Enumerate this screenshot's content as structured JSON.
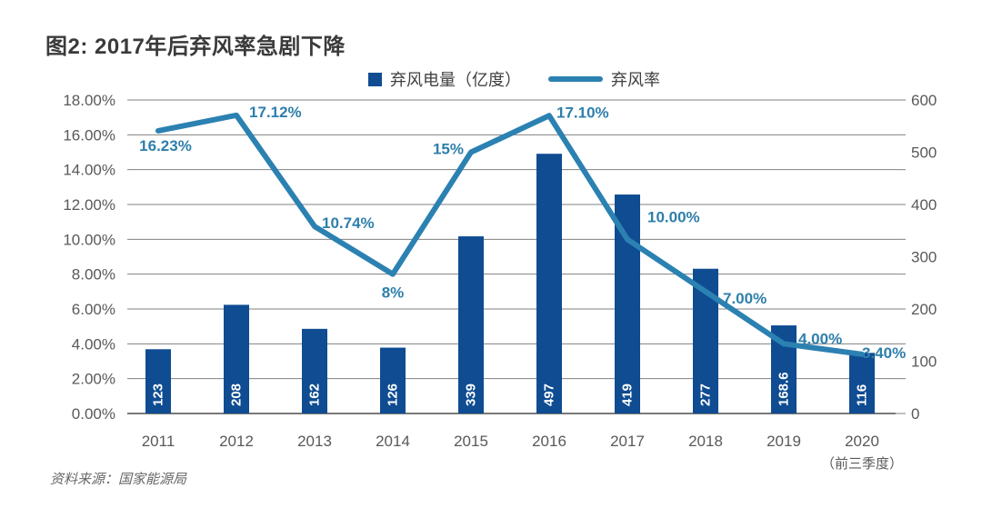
{
  "title": "图2: 2017年后弃风率急剧下降",
  "source_note": "资料来源：国家能源局",
  "legend": {
    "bar_label": "弃风电量（亿度）",
    "line_label": "弃风率"
  },
  "colors": {
    "bar": "#0f4c92",
    "line": "#2b81b1",
    "line_label": "#2e7fab",
    "bar_label": "#ffffff",
    "grid": "#808080",
    "axis_line": "#4d4d4d",
    "axis_text": "#595959",
    "title_text": "#3a3a3a",
    "legend_text": "#404040",
    "source_text": "#666666"
  },
  "chart_data": {
    "type": "combo-bar-line",
    "title": "图2: 2017年后弃风率急剧下降",
    "categories": [
      "2011",
      "2012",
      "2013",
      "2014",
      "2015",
      "2016",
      "2017",
      "2018",
      "2019",
      "2020"
    ],
    "category_note": {
      "index": 9,
      "text": "（前三季度）"
    },
    "series": [
      {
        "name": "弃风电量（亿度）",
        "type": "bar",
        "axis": "right",
        "values": [
          123,
          208,
          162,
          126,
          339,
          497,
          419,
          277,
          168.6,
          116
        ],
        "data_labels": [
          "123",
          "208",
          "162",
          "126",
          "339",
          "497",
          "419",
          "277",
          "168.6",
          "116"
        ]
      },
      {
        "name": "弃风率",
        "type": "line",
        "axis": "left",
        "values": [
          16.23,
          17.12,
          10.74,
          8,
          15,
          17.1,
          10.0,
          7.0,
          4.0,
          3.4
        ],
        "data_labels": [
          "16.23%",
          "17.12%",
          "10.74%",
          "8%",
          "15%",
          "17.10%",
          "10.00%",
          "7.00%",
          "4.00%",
          "3.40%"
        ]
      }
    ],
    "left_axis": {
      "min": 0,
      "max": 18,
      "tick_values": [
        0,
        2,
        4,
        6,
        8,
        10,
        12,
        14,
        16,
        18
      ],
      "tick_labels": [
        "0.00%",
        "2.00%",
        "4.00%",
        "6.00%",
        "8.00%",
        "10.00%",
        "12.00%",
        "14.00%",
        "16.00%",
        "18.00%"
      ],
      "format": "percent"
    },
    "right_axis": {
      "min": 0,
      "max": 600,
      "tick_values": [
        0,
        100,
        200,
        300,
        400,
        500,
        600
      ],
      "tick_labels": [
        "0",
        "100",
        "200",
        "300",
        "400",
        "500",
        "600"
      ]
    },
    "grid": true,
    "legend_position": "top"
  }
}
